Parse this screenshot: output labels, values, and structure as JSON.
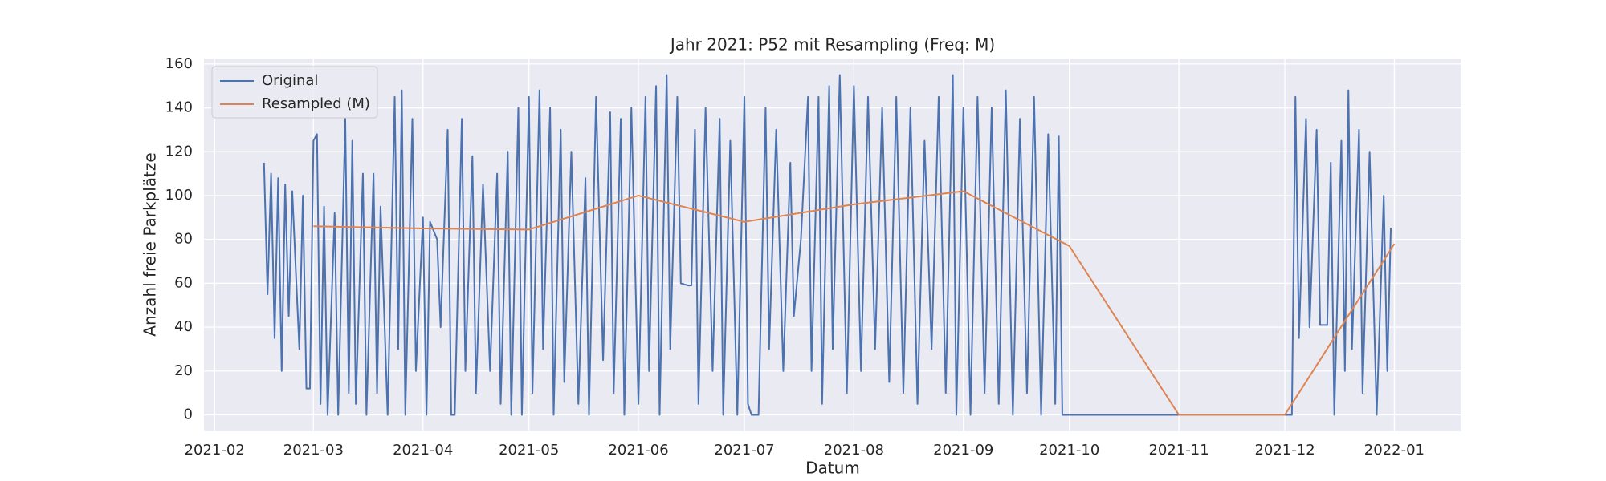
{
  "chart_data": {
    "type": "line",
    "title": "Jahr 2021: P52 mit Resampling (Freq: M)",
    "xlabel": "Datum",
    "ylabel": "Anzahl freie Parkplätze",
    "xlim": [
      "2021-01-29",
      "2022-01-20"
    ],
    "xticks": [
      "2021-02",
      "2021-03",
      "2021-04",
      "2021-05",
      "2021-06",
      "2021-07",
      "2021-08",
      "2021-09",
      "2021-10",
      "2021-11",
      "2021-12",
      "2022-01"
    ],
    "ylim": [
      -7.5,
      162.5
    ],
    "yticks": [
      0,
      20,
      40,
      60,
      80,
      100,
      120,
      140,
      160
    ],
    "grid": true,
    "legend": "upper left",
    "series": [
      {
        "name": "Original",
        "color": "#4c72b0",
        "x": [
          "2021-02-15",
          "2021-02-16",
          "2021-02-17",
          "2021-02-18",
          "2021-02-19",
          "2021-02-20",
          "2021-02-21",
          "2021-02-22",
          "2021-02-23",
          "2021-02-25",
          "2021-02-26",
          "2021-02-27",
          "2021-02-28",
          "2021-03-01",
          "2021-03-02",
          "2021-03-03",
          "2021-03-04",
          "2021-03-05",
          "2021-03-07",
          "2021-03-08",
          "2021-03-10",
          "2021-03-11",
          "2021-03-12",
          "2021-03-13",
          "2021-03-15",
          "2021-03-16",
          "2021-03-18",
          "2021-03-19",
          "2021-03-20",
          "2021-03-22",
          "2021-03-24",
          "2021-03-25",
          "2021-03-26",
          "2021-03-27",
          "2021-03-29",
          "2021-03-30",
          "2021-04-01",
          "2021-04-02",
          "2021-04-03",
          "2021-04-05",
          "2021-04-06",
          "2021-04-08",
          "2021-04-09",
          "2021-04-10",
          "2021-04-12",
          "2021-04-13",
          "2021-04-15",
          "2021-04-16",
          "2021-04-18",
          "2021-04-20",
          "2021-04-22",
          "2021-04-23",
          "2021-04-25",
          "2021-04-26",
          "2021-04-28",
          "2021-04-29",
          "2021-05-01",
          "2021-05-02",
          "2021-05-04",
          "2021-05-05",
          "2021-05-07",
          "2021-05-08",
          "2021-05-10",
          "2021-05-11",
          "2021-05-13",
          "2021-05-15",
          "2021-05-17",
          "2021-05-18",
          "2021-05-20",
          "2021-05-22",
          "2021-05-24",
          "2021-05-25",
          "2021-05-27",
          "2021-05-28",
          "2021-05-30",
          "2021-06-01",
          "2021-06-03",
          "2021-06-04",
          "2021-06-06",
          "2021-06-07",
          "2021-06-09",
          "2021-06-10",
          "2021-06-12",
          "2021-06-13",
          "2021-06-15",
          "2021-06-16",
          "2021-06-17",
          "2021-06-18",
          "2021-06-20",
          "2021-06-22",
          "2021-06-24",
          "2021-06-25",
          "2021-06-27",
          "2021-06-29",
          "2021-07-01",
          "2021-07-02",
          "2021-07-03",
          "2021-07-05",
          "2021-07-07",
          "2021-07-08",
          "2021-07-10",
          "2021-07-12",
          "2021-07-14",
          "2021-07-15",
          "2021-07-17",
          "2021-07-19",
          "2021-07-20",
          "2021-07-22",
          "2021-07-23",
          "2021-07-25",
          "2021-07-26",
          "2021-07-28",
          "2021-07-30",
          "2021-08-01",
          "2021-08-03",
          "2021-08-05",
          "2021-08-07",
          "2021-08-09",
          "2021-08-11",
          "2021-08-13",
          "2021-08-15",
          "2021-08-17",
          "2021-08-19",
          "2021-08-21",
          "2021-08-23",
          "2021-08-25",
          "2021-08-27",
          "2021-08-29",
          "2021-08-30",
          "2021-09-01",
          "2021-09-03",
          "2021-09-05",
          "2021-09-07",
          "2021-09-09",
          "2021-09-11",
          "2021-09-13",
          "2021-09-15",
          "2021-09-17",
          "2021-09-19",
          "2021-09-21",
          "2021-09-23",
          "2021-09-25",
          "2021-09-27",
          "2021-09-28",
          "2021-09-29",
          "2021-12-03",
          "2021-12-04",
          "2021-12-05",
          "2021-12-07",
          "2021-12-08",
          "2021-12-10",
          "2021-12-11",
          "2021-12-13",
          "2021-12-14",
          "2021-12-15",
          "2021-12-17",
          "2021-12-18",
          "2021-12-19",
          "2021-12-20",
          "2021-12-22",
          "2021-12-23",
          "2021-12-25",
          "2021-12-27",
          "2021-12-29",
          "2021-12-30",
          "2021-12-31"
        ],
        "values": [
          115,
          55,
          110,
          35,
          108,
          20,
          105,
          45,
          102,
          30,
          100,
          12,
          12,
          125,
          128,
          5,
          95,
          0,
          92,
          0,
          135,
          10,
          125,
          5,
          110,
          0,
          110,
          10,
          95,
          0,
          145,
          30,
          148,
          0,
          135,
          20,
          90,
          0,
          88,
          80,
          40,
          130,
          0,
          0,
          135,
          20,
          118,
          10,
          105,
          20,
          110,
          5,
          120,
          0,
          140,
          0,
          145,
          10,
          148,
          30,
          140,
          0,
          130,
          15,
          120,
          5,
          108,
          0,
          145,
          25,
          138,
          10,
          135,
          0,
          140,
          5,
          145,
          20,
          150,
          0,
          155,
          30,
          145,
          60,
          59,
          59,
          130,
          5,
          140,
          20,
          135,
          0,
          125,
          0,
          145,
          5,
          0,
          0,
          140,
          30,
          130,
          20,
          115,
          45,
          80,
          145,
          20,
          145,
          5,
          150,
          30,
          155,
          10,
          150,
          20,
          145,
          30,
          140,
          15,
          145,
          10,
          140,
          5,
          125,
          30,
          145,
          10,
          155,
          0,
          140,
          0,
          145,
          10,
          140,
          5,
          148,
          0,
          135,
          10,
          145,
          0,
          128,
          5,
          127,
          0,
          0,
          145,
          35,
          135,
          40,
          130,
          41,
          41,
          115,
          0,
          125,
          20,
          148,
          30,
          130,
          10,
          120,
          0,
          100,
          20,
          85
        ]
      },
      {
        "name": "Resampled (M)",
        "color": "#dd8452",
        "x": [
          "2021-03",
          "2021-04",
          "2021-05",
          "2021-06",
          "2021-07",
          "2021-08",
          "2021-09",
          "2021-10",
          "2021-11",
          "2021-12",
          "2022-01"
        ],
        "values": [
          86,
          85,
          84.5,
          100,
          88,
          96,
          102,
          77,
          0,
          0,
          78
        ]
      }
    ]
  }
}
